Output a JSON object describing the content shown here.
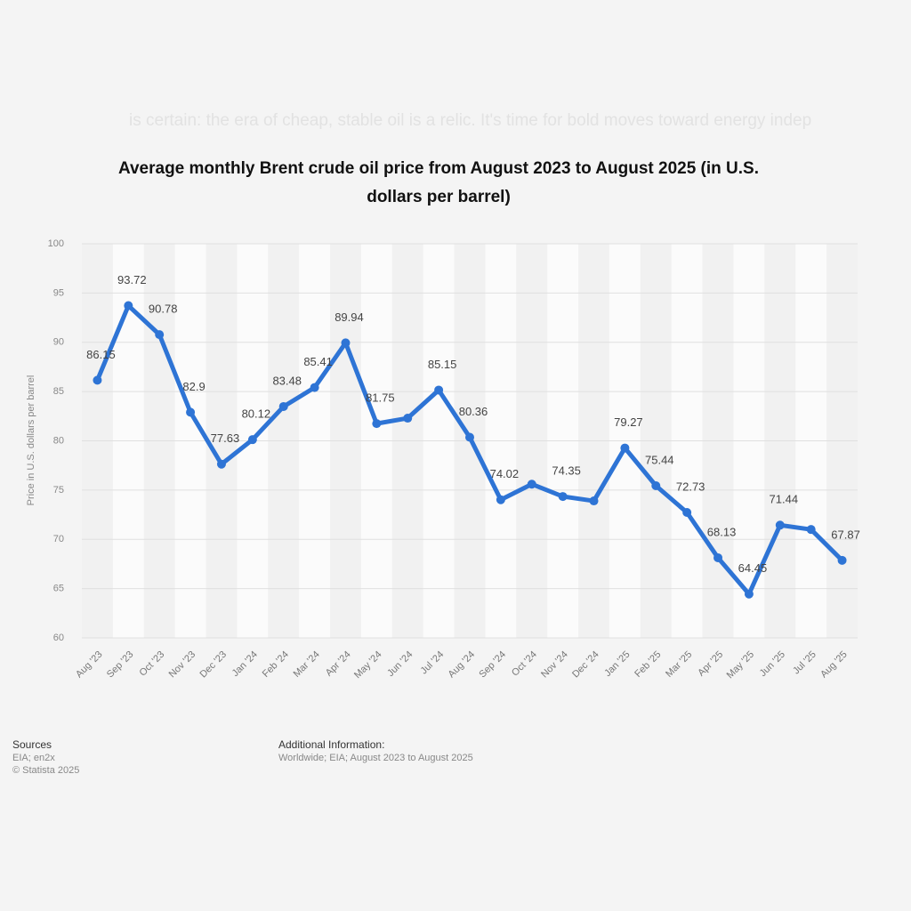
{
  "overlay_text": "is certain: the era of cheap, stable oil is a relic. It's time for bold moves toward energy indep",
  "chart_data": {
    "type": "line",
    "title": "Average monthly Brent crude oil price from August 2023 to August 2025 (in U.S. dollars per barrel)",
    "y_label": "Price in U.S. dollars per barrel",
    "categories": [
      "Aug '23",
      "Sep '23",
      "Oct '23",
      "Nov '23",
      "Dec '23",
      "Jan '24",
      "Feb '24",
      "Mar '24",
      "Apr '24",
      "May '24",
      "Jun '24",
      "Jul '24",
      "Aug '24",
      "Sep '24",
      "Oct '24",
      "Nov '24",
      "Dec '24",
      "Jan '25",
      "Feb '25",
      "Mar '25",
      "Apr '25",
      "May '25",
      "Jun '25",
      "Jul '25",
      "Aug '25"
    ],
    "series": [
      {
        "name": "Brent crude oil price",
        "color": "#2e74d5",
        "values": [
          86.15,
          93.72,
          90.78,
          82.9,
          77.63,
          80.12,
          83.48,
          85.41,
          89.94,
          81.75,
          82.3,
          85.15,
          80.36,
          74.02,
          75.6,
          74.35,
          73.9,
          79.27,
          75.44,
          72.73,
          68.13,
          64.45,
          71.44,
          71.0,
          67.87
        ],
        "value_labels": [
          "86.15",
          "93.72",
          "90.78",
          "82.9",
          "77.63",
          "80.12",
          "83.48",
          "85.41",
          "89.94",
          "81.75",
          null,
          "85.15",
          "80.36",
          "74.02",
          null,
          "74.35",
          null,
          "79.27",
          "75.44",
          "72.73",
          "68.13",
          "64.45",
          "71.44",
          null,
          "67.87"
        ]
      }
    ],
    "ylim": [
      60,
      100
    ],
    "yticks": [
      60,
      65,
      70,
      75,
      80,
      85,
      90,
      95,
      100
    ],
    "grid": true
  },
  "footer": {
    "sources_title": "Sources",
    "sources": "EIA; en2x",
    "copyright": "© Statista 2025",
    "info_title": "Additional Information:",
    "info": "Worldwide; EIA; August 2023 to August 2025"
  }
}
